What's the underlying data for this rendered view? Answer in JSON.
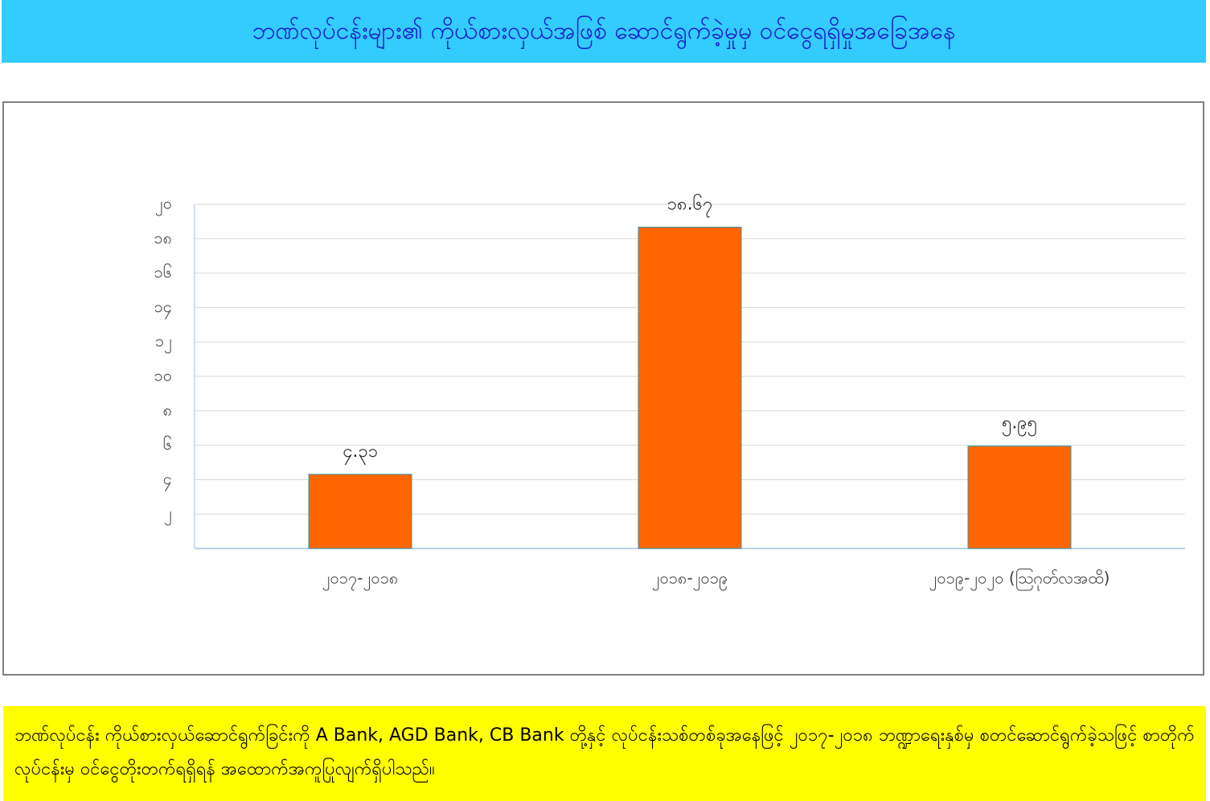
{
  "title": "ဘဏ်လုပ်ငန်းများ၏ ကိုယ်စားလှယ်အဖြစ် ဆောင်ရွက်ခဲ့မှုမှ ဝင်ငွေရရှိမှုအခြေအနေ",
  "chart_data": {
    "type": "bar",
    "categories": [
      "၂၀၁၇-၂၀၁၈",
      "၂၀၁၈-၂၀၁၉",
      "၂၀၁၉-၂၀၂၀ (ဩဂုတ်လအထိ)"
    ],
    "values": [
      4.31,
      18.67,
      5.95
    ],
    "value_labels": [
      "၄.၃၁",
      "၁၈.၆၇",
      "၅.၉၅"
    ],
    "color": "#ff6600",
    "ylim": [
      0,
      20
    ],
    "yticks": [
      {
        "value": 2,
        "label": "၂"
      },
      {
        "value": 4,
        "label": "၄"
      },
      {
        "value": 6,
        "label": "၆"
      },
      {
        "value": 8,
        "label": "၈"
      },
      {
        "value": 10,
        "label": "၁၀"
      },
      {
        "value": 12,
        "label": "၁၂"
      },
      {
        "value": 14,
        "label": "၁၄"
      },
      {
        "value": 16,
        "label": "၁၆"
      },
      {
        "value": 18,
        "label": "၁၈"
      },
      {
        "value": 20,
        "label": "၂၀"
      }
    ],
    "grid": true
  },
  "note": "ဘဏ်လုပ်ငန်း ကိုယ်စားလှယ်ဆောင်ရွက်ခြင်းကို A Bank, AGD Bank, CB Bank တို့နှင့် လုပ်ငန်းသစ်တစ်ခုအနေဖြင့် ၂၀၁၇-၂၀၁၈ ဘဏ္ဍာရေးနှစ်မှ စတင်ဆောင်ရွက်ခဲ့သဖြင့် စာတိုက်လုပ်ငန်းမှ ဝင်ငွေတိုးတက်ရရှိရန် အထောက်အကူပြုလျက်ရှိပါသည်။"
}
